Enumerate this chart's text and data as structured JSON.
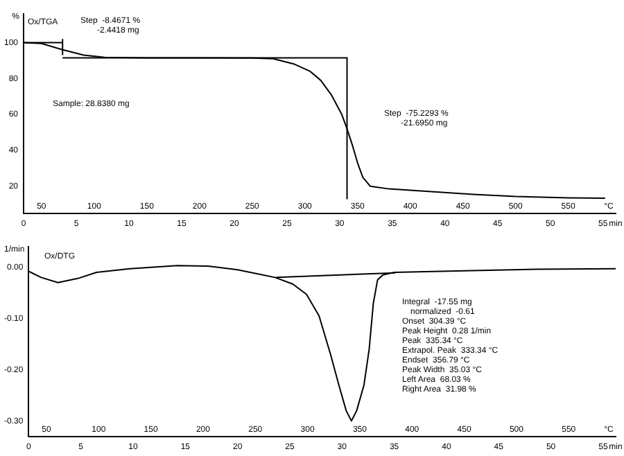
{
  "chart_data": [
    {
      "type": "line",
      "ylabel": "%",
      "xlim": [
        0,
        56.2
      ],
      "ylim": [
        5,
        116
      ],
      "xticks": [
        0,
        5,
        10,
        15,
        20,
        25,
        30,
        35,
        40,
        45,
        50,
        55,
        {
          "value": 56.2,
          "label": "min"
        }
      ],
      "x2lim": [
        33,
        595
      ],
      "x2ticks": [
        50,
        100,
        150,
        200,
        250,
        300,
        350,
        400,
        450,
        500,
        550,
        {
          "value": 595,
          "label": "°C"
        }
      ],
      "yticks": [
        20,
        40,
        60,
        80,
        100
      ],
      "series": [
        {
          "color": "#000000",
          "x": [
            0,
            1.7,
            3.7,
            5.7,
            7.7,
            11.7,
            16.7,
            21.7,
            23.7,
            25.7,
            27.2,
            28.2,
            29.2,
            30.2,
            30.7,
            31.2,
            31.7,
            32.2,
            32.9,
            34.7,
            38.7,
            42.7,
            46.7,
            51.7,
            55.2
          ],
          "values": [
            100,
            99.5,
            96,
            93,
            91.8,
            91.5,
            91.5,
            91.4,
            91,
            88,
            84,
            79,
            71,
            60,
            52,
            43,
            33,
            25,
            20,
            18.5,
            17,
            15.5,
            14.3,
            13.5,
            13.3
          ]
        },
        {
          "color": "#000000",
          "x": [
            0,
            3.7
          ],
          "values": [
            100,
            100
          ]
        },
        {
          "color": "#000000",
          "x": [
            3.7,
            3.7
          ],
          "values": [
            93,
            102
          ]
        },
        {
          "color": "#000000",
          "x": [
            3.7,
            30.7
          ],
          "values": [
            91.5,
            91.5
          ]
        },
        {
          "color": "#000000",
          "x": [
            30.7,
            30.7
          ],
          "values": [
            91.5,
            13
          ]
        }
      ],
      "annotations": [
        "Ox/TGA",
        "Step  -8.4671 %",
        "-2.4418 mg",
        "Sample: 28.8380 mg",
        "Step  -75.2293 %",
        "-21.6950 mg"
      ],
      "grid": false,
      "legend": false,
      "marker": "none",
      "line_style": "solid"
    },
    {
      "type": "line",
      "ylabel": "1/min",
      "xlim": [
        0,
        56.2
      ],
      "ylim": [
        -0.33,
        0.04
      ],
      "xticks": [
        0,
        5,
        10,
        15,
        20,
        25,
        30,
        35,
        40,
        45,
        50,
        55,
        {
          "value": 56.2,
          "label": "min"
        }
      ],
      "x2lim": [
        33,
        595
      ],
      "x2ticks": [
        50,
        100,
        150,
        200,
        250,
        300,
        350,
        400,
        450,
        500,
        550,
        {
          "value": 595,
          "label": "°C"
        }
      ],
      "yticks": [
        {
          "value": 0,
          "label": "0.00"
        },
        {
          "value": -0.1,
          "label": "-0.10"
        },
        {
          "value": -0.2,
          "label": "-0.20"
        },
        {
          "value": -0.3,
          "label": "-0.30"
        }
      ],
      "series": [
        {
          "color": "#000000",
          "x": [
            0,
            1.2,
            2.8,
            4.7,
            6.5,
            9.7,
            14.2,
            17.2,
            20,
            21.7,
            23.6,
            25.3,
            26.6,
            27.8,
            28.9,
            29.7,
            30.4,
            30.9,
            31.4,
            32.1,
            32.6,
            33,
            33.4,
            33.9,
            35,
            41.7,
            48.7,
            56.2
          ],
          "values": [
            -0.008,
            -0.02,
            -0.03,
            -0.022,
            -0.01,
            -0.003,
            0.003,
            0.002,
            -0.005,
            -0.012,
            -0.02,
            -0.033,
            -0.053,
            -0.095,
            -0.17,
            -0.23,
            -0.28,
            -0.3,
            -0.28,
            -0.23,
            -0.16,
            -0.07,
            -0.025,
            -0.015,
            -0.01,
            -0.007,
            -0.004,
            -0.003
          ]
        },
        {
          "color": "#000000",
          "x": [
            23.7,
            35.1
          ],
          "values": [
            -0.02,
            -0.011
          ]
        }
      ],
      "annotations": [
        "Ox/DTG",
        "Integral  -17.55 mg",
        "normalized  -0.61",
        "Onset  304.39 °C",
        "Peak Height  0.28 1/min",
        "Peak  335.34 °C",
        "Extrapol. Peak  333.34 °C",
        "Endset  356.79 °C",
        "Peak Width  35.03 °C",
        "Left Area  68.03 %",
        "Right Area  31.98 %"
      ],
      "grid": false,
      "legend": false,
      "marker": "none",
      "line_style": "solid"
    }
  ]
}
